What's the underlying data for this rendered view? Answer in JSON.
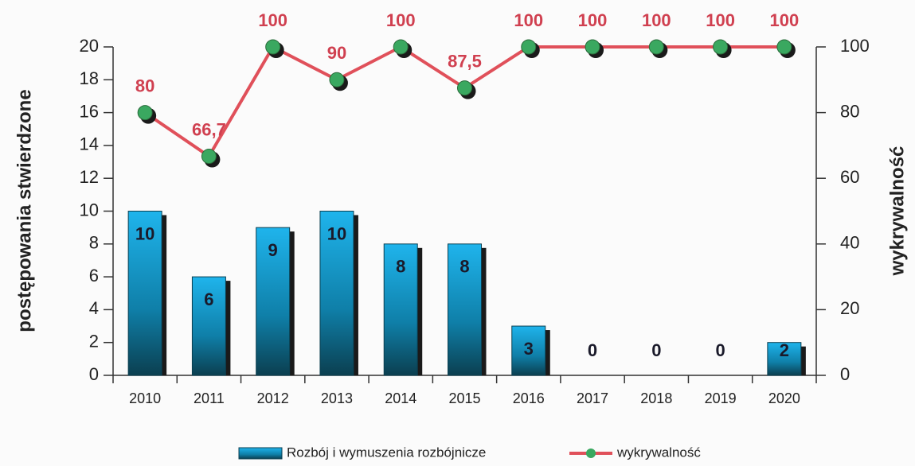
{
  "chart_data": {
    "type": "bar-line",
    "categories": [
      "2010",
      "2011",
      "2012",
      "2013",
      "2014",
      "2015",
      "2016",
      "2017",
      "2018",
      "2019",
      "2020"
    ],
    "series": [
      {
        "name": "Rozbój i wymuszenia rozbójnicze",
        "type": "bar",
        "color": "#1aa3d9",
        "axis": "y",
        "values": [
          10,
          6,
          9,
          10,
          8,
          8,
          3,
          0,
          0,
          0,
          2
        ]
      },
      {
        "name": "wykrywalność",
        "type": "line",
        "color": "#e0505a",
        "marker_color": "#3aa860",
        "axis": "y2",
        "values": [
          80,
          66.7,
          100,
          90,
          100,
          87.5,
          100,
          100,
          100,
          100,
          100
        ],
        "value_labels": [
          "80",
          "66,7",
          "100",
          "90",
          "100",
          "87,5",
          "100",
          "100",
          "100",
          "100",
          "100"
        ]
      }
    ],
    "ylabel": "postępowania stwierdzone",
    "y2label": "wykrywalność",
    "ylim": [
      0,
      20
    ],
    "yticks": [
      0,
      2,
      4,
      6,
      8,
      10,
      12,
      14,
      16,
      18,
      20
    ],
    "y2lim": [
      0,
      100
    ],
    "y2ticks": [
      0,
      20,
      40,
      60,
      80,
      100
    ],
    "legend": "bottom"
  }
}
